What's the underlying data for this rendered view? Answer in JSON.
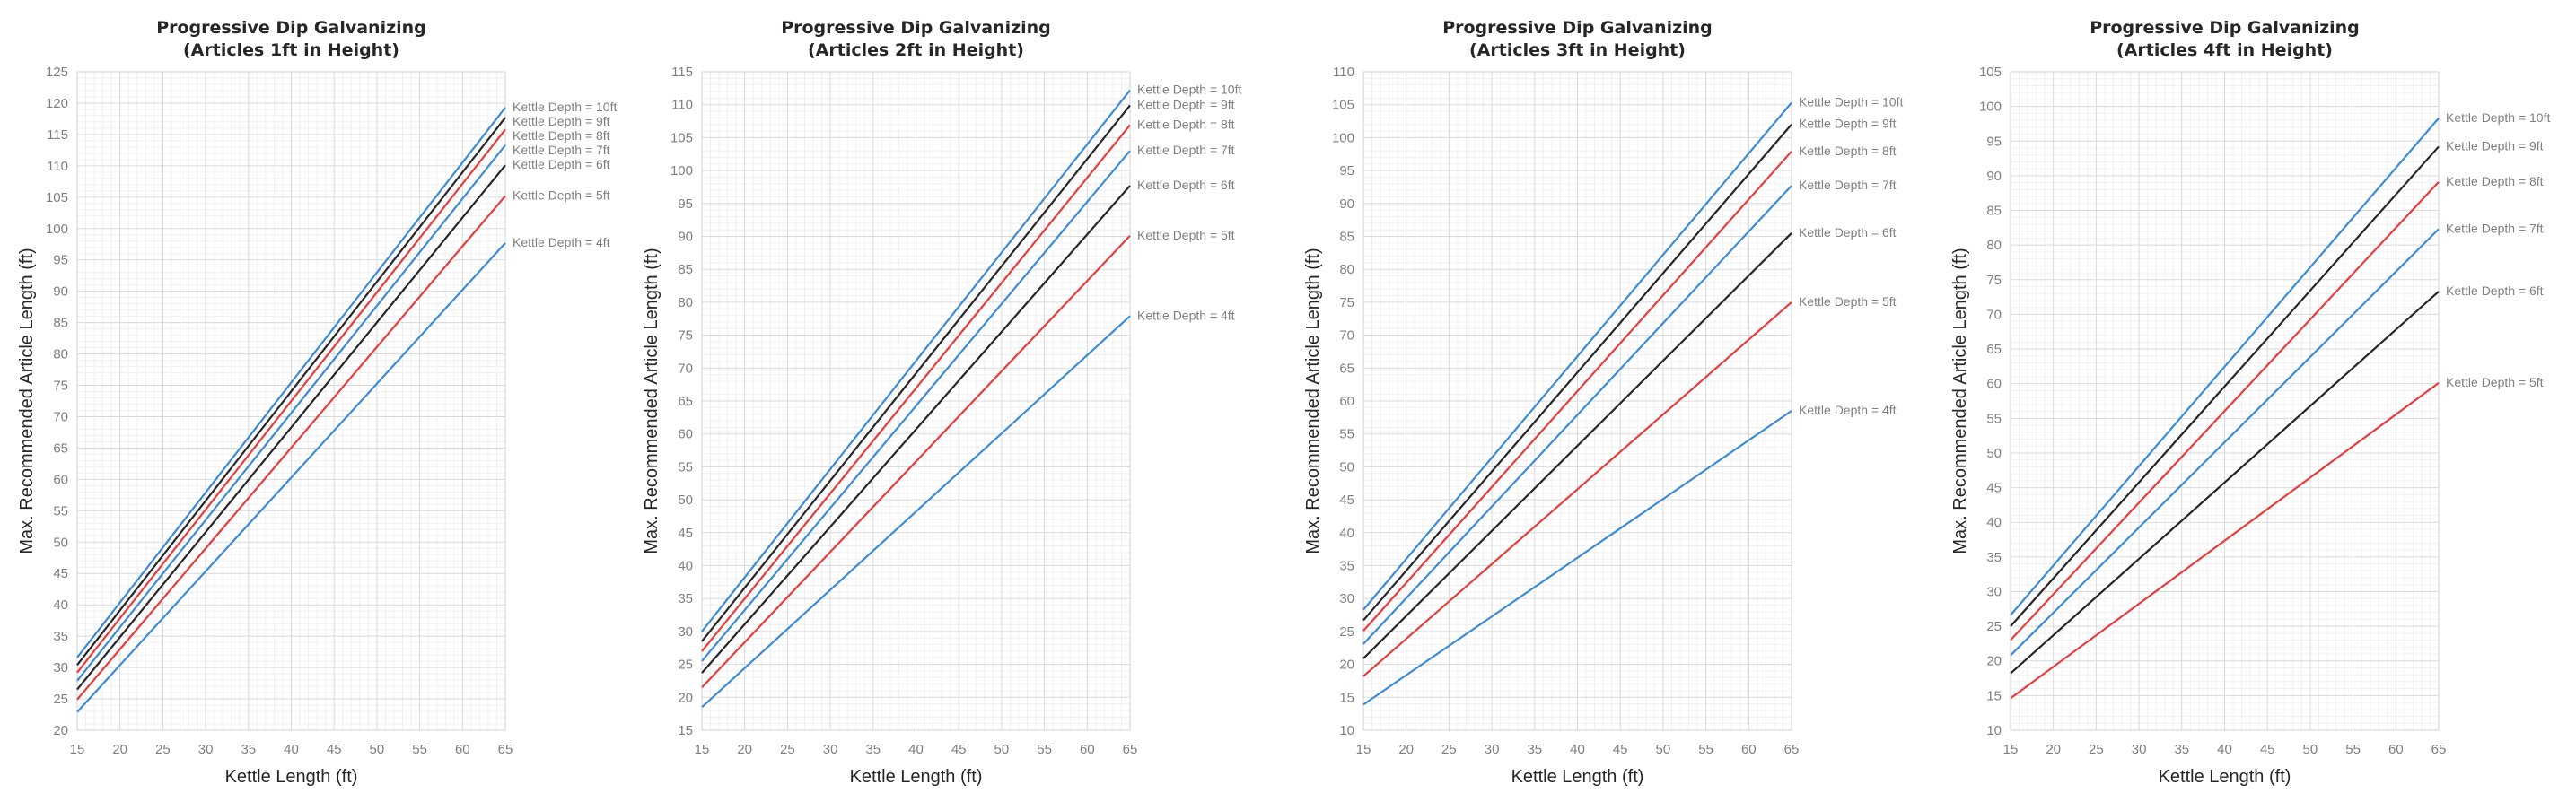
{
  "chart_data": [
    {
      "type": "line",
      "title": "Progressive  Dip Galvanizing",
      "subtitle": "(Articles 1ft in Height)",
      "xlabel": "Kettle Length (ft)",
      "ylabel": "Max. Recommended Article Length (ft)",
      "xlim": [
        15,
        65
      ],
      "xstep": 5,
      "ylim": [
        20,
        125
      ],
      "ystep": 5,
      "grid": true,
      "legend": "inline-right",
      "x": [
        15,
        65
      ],
      "series": [
        {
          "name": "Kettle Depth = 10ft",
          "color": "#3d8bd4",
          "values": [
            31.6,
            119.3
          ]
        },
        {
          "name": "Kettle Depth = 9ft",
          "color": "#262626",
          "values": [
            30.4,
            117.7
          ]
        },
        {
          "name": "Kettle Depth = 8ft",
          "color": "#e83c3c",
          "values": [
            29.2,
            115.8
          ]
        },
        {
          "name": "Kettle Depth = 7ft",
          "color": "#3d8bd4",
          "values": [
            27.9,
            113.3
          ]
        },
        {
          "name": "Kettle Depth = 6ft",
          "color": "#262626",
          "values": [
            26.5,
            110.1
          ]
        },
        {
          "name": "Kettle Depth = 5ft",
          "color": "#e83c3c",
          "values": [
            24.9,
            105.2
          ]
        },
        {
          "name": "Kettle Depth = 4ft",
          "color": "#3d8bd4",
          "values": [
            22.9,
            97.7
          ]
        }
      ]
    },
    {
      "type": "line",
      "title": "Progressive  Dip Galvanizing",
      "subtitle": "(Articles 2ft in Height)",
      "xlabel": "Kettle Length (ft)",
      "ylabel": "Max. Recommended Article Length (ft)",
      "xlim": [
        15,
        65
      ],
      "xstep": 5,
      "ylim": [
        15,
        115
      ],
      "ystep": 5,
      "grid": true,
      "legend": "inline-right",
      "x": [
        15,
        65
      ],
      "series": [
        {
          "name": "Kettle Depth = 10ft",
          "color": "#3d8bd4",
          "values": [
            30.0,
            112.2
          ]
        },
        {
          "name": "Kettle Depth = 9ft",
          "color": "#262626",
          "values": [
            28.5,
            109.9
          ]
        },
        {
          "name": "Kettle Depth = 8ft",
          "color": "#e83c3c",
          "values": [
            27.0,
            106.9
          ]
        },
        {
          "name": "Kettle Depth = 7ft",
          "color": "#3d8bd4",
          "values": [
            25.5,
            103.0
          ]
        },
        {
          "name": "Kettle Depth = 6ft",
          "color": "#262626",
          "values": [
            23.7,
            97.7
          ]
        },
        {
          "name": "Kettle Depth = 5ft",
          "color": "#e83c3c",
          "values": [
            21.5,
            90.1
          ]
        },
        {
          "name": "Kettle Depth = 4ft",
          "color": "#3d8bd4",
          "values": [
            18.5,
            77.9
          ]
        }
      ]
    },
    {
      "type": "line",
      "title": "Progressive  Dip Galvanizing",
      "subtitle": "(Articles 3ft in Height)",
      "xlabel": "Kettle Length (ft)",
      "ylabel": "Max. Recommended Article Length (ft)",
      "xlim": [
        15,
        65
      ],
      "xstep": 5,
      "ylim": [
        10,
        110
      ],
      "ystep": 5,
      "grid": true,
      "legend": "inline-right",
      "x": [
        15,
        65
      ],
      "series": [
        {
          "name": "Kettle Depth = 10ft",
          "color": "#3d8bd4",
          "values": [
            28.3,
            105.3
          ]
        },
        {
          "name": "Kettle Depth = 9ft",
          "color": "#262626",
          "values": [
            26.7,
            102.0
          ]
        },
        {
          "name": "Kettle Depth = 8ft",
          "color": "#e83c3c",
          "values": [
            25.1,
            97.9
          ]
        },
        {
          "name": "Kettle Depth = 7ft",
          "color": "#3d8bd4",
          "values": [
            23.1,
            92.7
          ]
        },
        {
          "name": "Kettle Depth = 6ft",
          "color": "#262626",
          "values": [
            20.9,
            85.5
          ]
        },
        {
          "name": "Kettle Depth = 5ft",
          "color": "#e83c3c",
          "values": [
            18.2,
            75.0
          ]
        },
        {
          "name": "Kettle Depth = 4ft",
          "color": "#3d8bd4",
          "values": [
            13.9,
            58.5
          ]
        }
      ]
    },
    {
      "type": "line",
      "title": "Progressive  Dip Galvanizing",
      "subtitle": "(Articles 4ft in Height)",
      "xlabel": "Kettle Length (ft)",
      "ylabel": "Max. Recommended Article Length (ft)",
      "xlim": [
        15,
        65
      ],
      "xstep": 5,
      "ylim": [
        10,
        105
      ],
      "ystep": 5,
      "grid": true,
      "legend": "inline-right",
      "x": [
        15,
        65
      ],
      "series": [
        {
          "name": "Kettle Depth = 10ft",
          "color": "#3d8bd4",
          "values": [
            26.6,
            98.3
          ]
        },
        {
          "name": "Kettle Depth = 9ft",
          "color": "#262626",
          "values": [
            25.0,
            94.2
          ]
        },
        {
          "name": "Kettle Depth = 8ft",
          "color": "#e83c3c",
          "values": [
            23.0,
            89.1
          ]
        },
        {
          "name": "Kettle Depth = 7ft",
          "color": "#3d8bd4",
          "values": [
            20.8,
            82.3
          ]
        },
        {
          "name": "Kettle Depth = 6ft",
          "color": "#262626",
          "values": [
            18.2,
            73.3
          ]
        },
        {
          "name": "Kettle Depth = 5ft",
          "color": "#e83c3c",
          "values": [
            14.6,
            60.1
          ]
        }
      ]
    }
  ]
}
